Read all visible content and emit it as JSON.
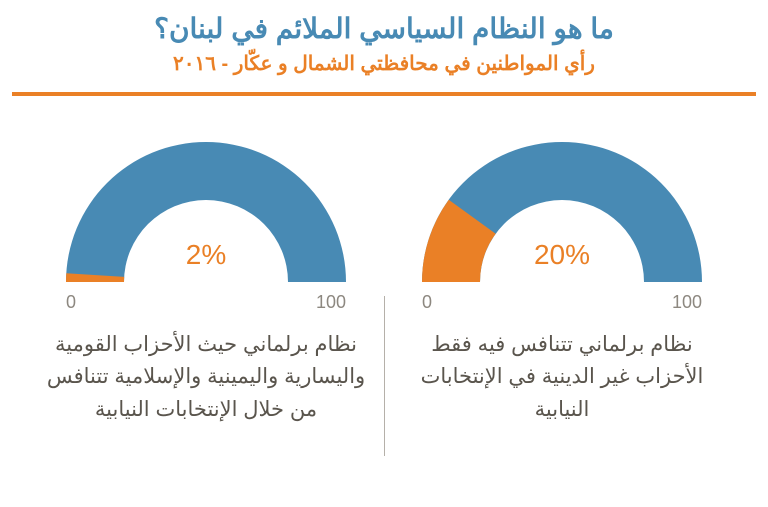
{
  "colors": {
    "title": "#488ab4",
    "accent": "#ea8026",
    "primary": "#488ab4",
    "hr": "#ea8026",
    "text": "#5a554d",
    "axis": "#8d8880",
    "background": "#ffffff"
  },
  "header": {
    "title": "ما هو النظام السياسي الملائم في لبنان؟",
    "subtitle": "رأي المواطنين في محافظتي الشمال و عكّار - ٢٠١٦"
  },
  "axis": {
    "min": "0",
    "max": "100"
  },
  "charts": {
    "right": {
      "percent": 20,
      "percent_label": "20%",
      "caption": "نظام برلماني تتنافس فيه فقط الأحزاب غير الدينية في الإنتخابات النيابية"
    },
    "left": {
      "percent": 2,
      "percent_label": "2%",
      "caption": "نظام برلماني حيث الأحزاب القومية واليسارية واليمينية والإسلامية تتنافس من خلال الإنتخابات النيابية"
    }
  },
  "chart_style": {
    "type": "semi-donut",
    "outer_radius": 140,
    "inner_radius": 82,
    "track_color": "#488ab4",
    "value_color": "#ea8026",
    "pct_fontsize": 28,
    "caption_fontsize": 21,
    "title_fontsize": 28,
    "subtitle_fontsize": 20,
    "axis_fontsize": 18
  }
}
